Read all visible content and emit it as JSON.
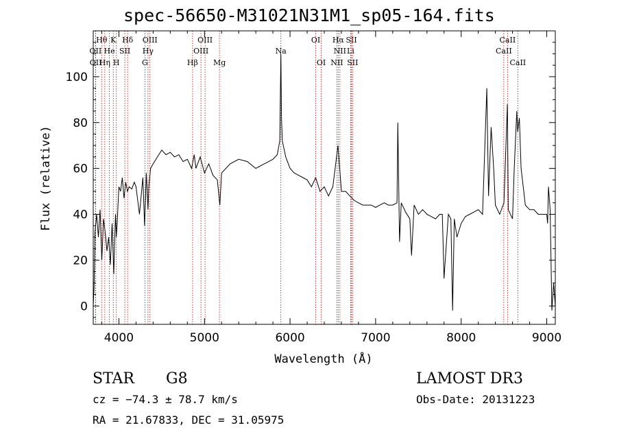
{
  "title": "spec-56650-M31021N31M1_sp05-164.fits",
  "info": {
    "object_class": "STAR",
    "subclass": "G8",
    "survey": "LAMOST DR3",
    "cz": "cz = −74.3 ± 78.7 km/s",
    "obs_date": "Obs-Date: 20131223",
    "radec": "RA =  21.67833, DEC =  31.05975"
  },
  "chart_data": {
    "type": "line",
    "xlabel": "Wavelength (Å)",
    "ylabel": "Flux (relative)",
    "xlim": [
      3700,
      9100
    ],
    "ylim": [
      -8,
      120
    ],
    "xticks": [
      4000,
      5000,
      6000,
      7000,
      8000,
      9000
    ],
    "yticks": [
      0,
      20,
      40,
      60,
      80,
      100
    ],
    "grid": false,
    "series": [
      {
        "x": [
          3700,
          3710,
          3720,
          3740,
          3760,
          3780,
          3800,
          3820,
          3840,
          3860,
          3880,
          3900,
          3920,
          3940,
          3950,
          3960,
          3970,
          3980,
          4000,
          4020,
          4040,
          4060,
          4080,
          4100,
          4120,
          4150,
          4180,
          4200,
          4240,
          4280,
          4300,
          4320,
          4340,
          4350,
          4370,
          4400,
          4450,
          4500,
          4550,
          4600,
          4650,
          4700,
          4750,
          4800,
          4850,
          4880,
          4900,
          4950,
          5000,
          5050,
          5100,
          5150,
          5180,
          5200,
          5250,
          5300,
          5400,
          5500,
          5600,
          5700,
          5800,
          5850,
          5880,
          5893,
          5900,
          5910,
          5950,
          6000,
          6050,
          6100,
          6150,
          6200,
          6250,
          6300,
          6350,
          6400,
          6450,
          6500,
          6560,
          6600,
          6650,
          6700,
          6750,
          6800,
          6850,
          6900,
          6950,
          7000,
          7050,
          7100,
          7150,
          7200,
          7250,
          7260,
          7280,
          7300,
          7350,
          7400,
          7420,
          7450,
          7500,
          7550,
          7600,
          7650,
          7700,
          7750,
          7780,
          7800,
          7850,
          7880,
          7900,
          7920,
          7950,
          8000,
          8050,
          8100,
          8150,
          8200,
          8250,
          8300,
          8320,
          8350,
          8380,
          8400,
          8450,
          8500,
          8540,
          8550,
          8600,
          8620,
          8650,
          8660,
          8680,
          8700,
          8750,
          8800,
          8850,
          8900,
          8950,
          9000,
          9010,
          9020,
          9040,
          9060,
          9080,
          9100
        ],
        "y": [
          0,
          8,
          32,
          40,
          30,
          42,
          20,
          38,
          32,
          24,
          30,
          18,
          36,
          14,
          28,
          40,
          30,
          36,
          52,
          50,
          56,
          47,
          54,
          50,
          52,
          51,
          54,
          52,
          40,
          56,
          35,
          58,
          42,
          52,
          60,
          62,
          65,
          68,
          66,
          67,
          65,
          66,
          63,
          64,
          60,
          66,
          60,
          65,
          58,
          62,
          57,
          55,
          44,
          58,
          60,
          62,
          64,
          63,
          60,
          62,
          64,
          66,
          72,
          110,
          82,
          72,
          65,
          60,
          58,
          57,
          56,
          55,
          52,
          56,
          50,
          52,
          48,
          52,
          70,
          50,
          50,
          48,
          46,
          45,
          44,
          44,
          44,
          43,
          44,
          45,
          44,
          44,
          45,
          80,
          28,
          45,
          41,
          38,
          22,
          44,
          40,
          42,
          40,
          39,
          38,
          40,
          40,
          12,
          40,
          38,
          -2,
          38,
          30,
          36,
          39,
          40,
          41,
          42,
          40,
          95,
          48,
          78,
          60,
          44,
          40,
          45,
          88,
          42,
          38,
          60,
          85,
          76,
          82,
          60,
          44,
          42,
          42,
          40,
          40,
          40,
          36,
          52,
          42,
          -2,
          10,
          0
        ]
      }
    ],
    "lines": [
      {
        "name": "Hθ",
        "x": 3798,
        "pos": "top",
        "row": 1
      },
      {
        "name": "OII",
        "x": 3727,
        "pos": "top",
        "row": 2
      },
      {
        "name": "OII",
        "x": 3729,
        "pos": "top",
        "row": 3
      },
      {
        "name": "He",
        "x": 3889,
        "pos": "top",
        "row": 2
      },
      {
        "name": "Hη",
        "x": 3835,
        "pos": "top",
        "row": 3
      },
      {
        "name": "K",
        "x": 3934,
        "pos": "top",
        "row": 1
      },
      {
        "name": "SII",
        "x": 4069,
        "pos": "top",
        "row": 2
      },
      {
        "name": "H",
        "x": 3970,
        "pos": "top",
        "row": 3
      },
      {
        "name": "Hδ",
        "x": 4102,
        "pos": "top",
        "row": 1
      },
      {
        "name": "OIII",
        "x": 4363,
        "pos": "top",
        "row": 1
      },
      {
        "name": "Hγ",
        "x": 4340,
        "pos": "top",
        "row": 2
      },
      {
        "name": "G",
        "x": 4304,
        "pos": "top",
        "row": 3
      },
      {
        "name": "Hβ",
        "x": 4861,
        "pos": "top",
        "row": 3
      },
      {
        "name": "OIII",
        "x": 5007,
        "pos": "top",
        "row": 1
      },
      {
        "name": "OIII",
        "x": 4959,
        "pos": "top",
        "row": 2
      },
      {
        "name": "Mg",
        "x": 5175,
        "pos": "top",
        "row": 3
      },
      {
        "name": "Na",
        "x": 5893,
        "pos": "top",
        "row": 2
      },
      {
        "name": "OI",
        "x": 6300,
        "pos": "top",
        "row": 1
      },
      {
        "name": "OI",
        "x": 6364,
        "pos": "top",
        "row": 3
      },
      {
        "name": "Hα",
        "x": 6563,
        "pos": "top",
        "row": 1
      },
      {
        "name": "NII",
        "x": 6583,
        "pos": "top",
        "row": 2
      },
      {
        "name": "NII",
        "x": 6548,
        "pos": "top",
        "row": 3
      },
      {
        "name": "SII",
        "x": 6717,
        "pos": "top",
        "row": 1
      },
      {
        "name": "Li",
        "x": 6708,
        "pos": "top",
        "row": 2
      },
      {
        "name": "SII",
        "x": 6731,
        "pos": "top",
        "row": 3
      },
      {
        "name": "CaII",
        "x": 8542,
        "pos": "top",
        "row": 1
      },
      {
        "name": "CaII",
        "x": 8498,
        "pos": "top",
        "row": 2
      },
      {
        "name": "CaII",
        "x": 8662,
        "pos": "top",
        "row": 3
      }
    ]
  }
}
